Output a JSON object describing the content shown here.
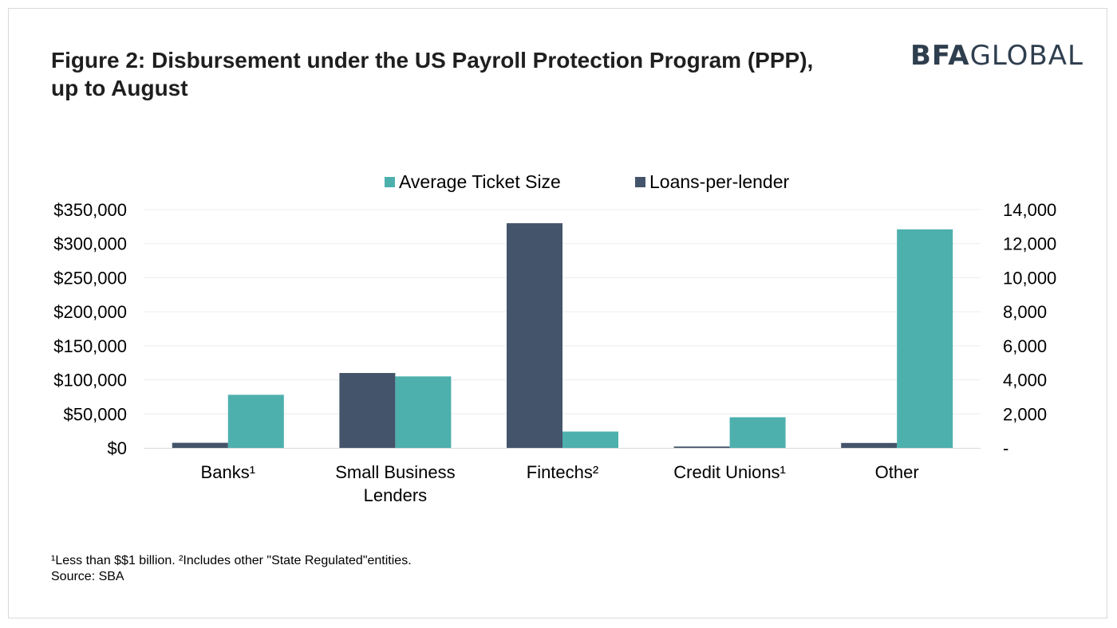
{
  "figure": {
    "title": "Figure 2: Disbursement under the US Payroll Protection Program (PPP), up to August",
    "logo_bold": "BFA",
    "logo_light": "GLOBAL",
    "footnote_line1": "¹Less than $$1 billion. ²Includes other \"State Regulated\"entities.",
    "footnote_line2": "Source: SBA"
  },
  "colors": {
    "average_ticket_size": "#4db0ad",
    "loans_per_lender": "#44546a",
    "gridline": "#ececec",
    "axis_line": "#d9d9d9"
  },
  "chart_data": {
    "type": "bar",
    "categories": [
      [
        "Banks¹"
      ],
      [
        "Small Business",
        "Lenders"
      ],
      [
        "Fintechs²"
      ],
      [
        "Credit Unions¹"
      ],
      [
        "Other"
      ]
    ],
    "series": [
      {
        "name": "Loans-per-lender",
        "axis": "right",
        "values": [
          300,
          4400,
          13200,
          80,
          290
        ]
      },
      {
        "name": "Average Ticket Size",
        "axis": "left",
        "values": [
          78000,
          105000,
          24000,
          45000,
          321000
        ]
      }
    ],
    "legend_order": [
      "Average Ticket Size",
      "Loans-per-lender"
    ],
    "legend_position": "top",
    "y_left": {
      "lim": [
        0,
        350000
      ],
      "ticks": [
        0,
        50000,
        100000,
        150000,
        200000,
        250000,
        300000,
        350000
      ],
      "tick_labels": [
        "$0",
        "$50,000",
        "$100,000",
        "$150,000",
        "$200,000",
        "$250,000",
        "$300,000",
        "$350,000"
      ]
    },
    "y_right": {
      "lim": [
        0,
        14000
      ],
      "ticks": [
        0,
        2000,
        4000,
        6000,
        8000,
        10000,
        12000,
        14000
      ],
      "tick_labels": [
        "-",
        "2,000",
        "4,000",
        "6,000",
        "8,000",
        "10,000",
        "12,000",
        "14,000"
      ]
    },
    "grid": true
  }
}
